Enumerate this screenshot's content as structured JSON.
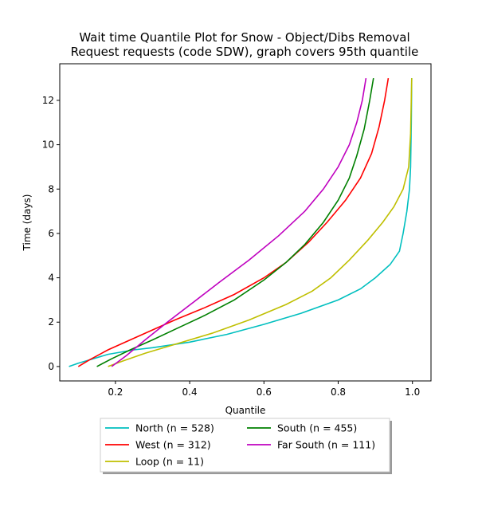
{
  "chart_data": {
    "type": "line",
    "title_lines": [
      "Wait time Quantile Plot for Snow - Object/Dibs Removal",
      "Request  requests (code SDW), graph covers 95th quantile"
    ],
    "xlabel": "Quantile",
    "ylabel": "Time (days)",
    "xlim": [
      0.05,
      1.05
    ],
    "ylim": [
      -0.65,
      13.65
    ],
    "xticks": [
      0.2,
      0.4,
      0.6,
      0.8,
      1.0
    ],
    "xtick_labels": [
      "0.2",
      "0.4",
      "0.6",
      "0.8",
      "1.0"
    ],
    "yticks": [
      0,
      2,
      4,
      6,
      8,
      10,
      12
    ],
    "ytick_labels": [
      "0",
      "2",
      "4",
      "6",
      "8",
      "10",
      "12"
    ],
    "grid": false,
    "legend_placement": "below-center",
    "series": [
      {
        "name": "North (n = 528)",
        "color": "#00bfbf",
        "points": [
          [
            0.075,
            0
          ],
          [
            0.1,
            0.15
          ],
          [
            0.13,
            0.3
          ],
          [
            0.18,
            0.55
          ],
          [
            0.25,
            0.75
          ],
          [
            0.3,
            0.85
          ],
          [
            0.4,
            1.1
          ],
          [
            0.5,
            1.45
          ],
          [
            0.6,
            1.9
          ],
          [
            0.7,
            2.4
          ],
          [
            0.8,
            3.0
          ],
          [
            0.86,
            3.5
          ],
          [
            0.9,
            4.0
          ],
          [
            0.94,
            4.6
          ],
          [
            0.965,
            5.2
          ],
          [
            0.975,
            6.0
          ],
          [
            0.985,
            7.0
          ],
          [
            0.992,
            8.0
          ],
          [
            0.995,
            9.0
          ],
          [
            0.997,
            11.0
          ],
          [
            0.998,
            13.0
          ]
        ]
      },
      {
        "name": "West (n = 312)",
        "color": "#ff0000",
        "points": [
          [
            0.1,
            0
          ],
          [
            0.13,
            0.3
          ],
          [
            0.18,
            0.75
          ],
          [
            0.24,
            1.2
          ],
          [
            0.3,
            1.65
          ],
          [
            0.36,
            2.1
          ],
          [
            0.44,
            2.65
          ],
          [
            0.52,
            3.25
          ],
          [
            0.6,
            4.0
          ],
          [
            0.66,
            4.7
          ],
          [
            0.72,
            5.6
          ],
          [
            0.77,
            6.5
          ],
          [
            0.82,
            7.5
          ],
          [
            0.86,
            8.5
          ],
          [
            0.89,
            9.6
          ],
          [
            0.91,
            10.8
          ],
          [
            0.925,
            12.0
          ],
          [
            0.935,
            13.0
          ]
        ]
      },
      {
        "name": "Loop (n = 11)",
        "color": "#bfbf00",
        "points": [
          [
            0.18,
            0
          ],
          [
            0.22,
            0.25
          ],
          [
            0.28,
            0.6
          ],
          [
            0.36,
            1.0
          ],
          [
            0.46,
            1.5
          ],
          [
            0.56,
            2.1
          ],
          [
            0.66,
            2.8
          ],
          [
            0.73,
            3.4
          ],
          [
            0.78,
            4.0
          ],
          [
            0.83,
            4.8
          ],
          [
            0.88,
            5.7
          ],
          [
            0.92,
            6.5
          ],
          [
            0.95,
            7.2
          ],
          [
            0.975,
            8.0
          ],
          [
            0.99,
            9.0
          ],
          [
            0.995,
            10.5
          ],
          [
            0.998,
            13.0
          ]
        ]
      },
      {
        "name": "South (n = 455)",
        "color": "#008000",
        "points": [
          [
            0.15,
            0
          ],
          [
            0.19,
            0.35
          ],
          [
            0.24,
            0.75
          ],
          [
            0.3,
            1.2
          ],
          [
            0.37,
            1.75
          ],
          [
            0.44,
            2.3
          ],
          [
            0.52,
            3.0
          ],
          [
            0.6,
            3.9
          ],
          [
            0.66,
            4.7
          ],
          [
            0.71,
            5.5
          ],
          [
            0.76,
            6.5
          ],
          [
            0.8,
            7.5
          ],
          [
            0.83,
            8.5
          ],
          [
            0.85,
            9.5
          ],
          [
            0.87,
            10.7
          ],
          [
            0.885,
            12.0
          ],
          [
            0.895,
            13.0
          ]
        ]
      },
      {
        "name": "Far South (n = 111)",
        "color": "#bf00bf",
        "points": [
          [
            0.19,
            0
          ],
          [
            0.23,
            0.5
          ],
          [
            0.28,
            1.2
          ],
          [
            0.34,
            2.0
          ],
          [
            0.41,
            2.9
          ],
          [
            0.48,
            3.8
          ],
          [
            0.56,
            4.8
          ],
          [
            0.64,
            5.9
          ],
          [
            0.71,
            7.0
          ],
          [
            0.76,
            8.0
          ],
          [
            0.8,
            9.0
          ],
          [
            0.83,
            10.0
          ],
          [
            0.85,
            11.0
          ],
          [
            0.865,
            12.0
          ],
          [
            0.875,
            13.0
          ]
        ]
      }
    ]
  }
}
